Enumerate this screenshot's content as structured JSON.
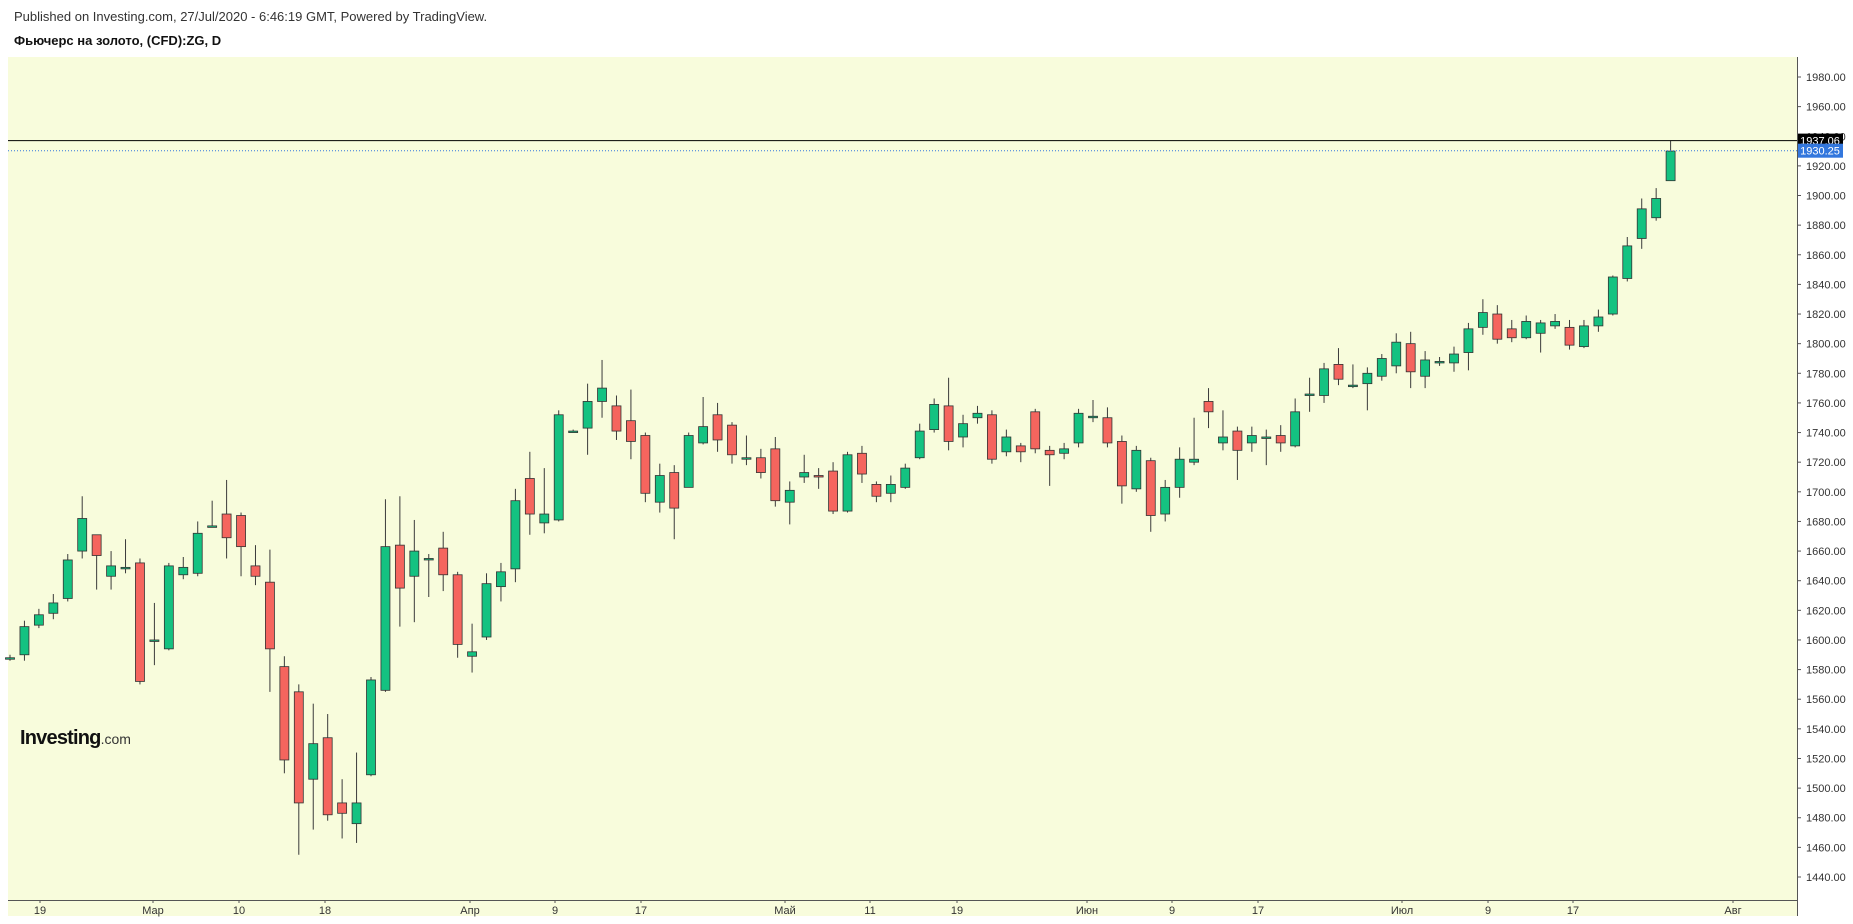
{
  "header": {
    "published": "Published on Investing.com, 27/Jul/2020 - 6:46:19 GMT, Powered by TradingView.",
    "symbol": "Фьючерс на золото, (CFD):ZG, D"
  },
  "logo": {
    "name": "Investing",
    "suffix": ".com"
  },
  "colors": {
    "background": "#f8fcdc",
    "up": "#14c281",
    "down": "#f5655e",
    "wick": "#3a3a3a",
    "axis": "#555555",
    "price_line": "#000000",
    "last_label": "#3377dd"
  },
  "chart_data": {
    "type": "candlestick",
    "title": "Фьючерс на золото, (CFD):ZG, D",
    "interval": "D",
    "ylim": [
      1430,
      1995
    ],
    "y_ticks": [
      1440,
      1460,
      1480,
      1500,
      1520,
      1540,
      1560,
      1580,
      1600,
      1620,
      1640,
      1660,
      1680,
      1700,
      1720,
      1740,
      1760,
      1780,
      1800,
      1820,
      1840,
      1860,
      1880,
      1900,
      1920,
      1940,
      1960,
      1980
    ],
    "x_labels": [
      "19",
      "Мар",
      "10",
      "18",
      "Апр",
      "9",
      "17",
      "Май",
      "11",
      "19",
      "Июн",
      "9",
      "17",
      "Июл",
      "9",
      "17",
      "Авг"
    ],
    "grid": false,
    "price_line": {
      "value": 1937.06,
      "label": "1937.06"
    },
    "last_price": {
      "value": 1930.25,
      "label": "1930.25"
    },
    "candles": [
      [
        1588,
        1588,
        1586,
        1590
      ],
      [
        1590,
        1609,
        1586,
        1613
      ],
      [
        1610,
        1617,
        1608,
        1621
      ],
      [
        1618,
        1625,
        1614,
        1631
      ],
      [
        1628,
        1654,
        1626,
        1658
      ],
      [
        1660,
        1682,
        1655,
        1697
      ],
      [
        1671,
        1657,
        1634,
        1671
      ],
      [
        1643,
        1650,
        1634,
        1660
      ],
      [
        1648,
        1649,
        1645,
        1668
      ],
      [
        1652,
        1572,
        1570,
        1655
      ],
      [
        1600,
        1600,
        1583,
        1625
      ],
      [
        1594,
        1650,
        1593,
        1652
      ],
      [
        1644,
        1649,
        1641,
        1656
      ],
      [
        1645,
        1672,
        1643,
        1680
      ],
      [
        1677,
        1677,
        1676,
        1694
      ],
      [
        1685,
        1669,
        1655,
        1708
      ],
      [
        1684,
        1663,
        1643,
        1686
      ],
      [
        1650,
        1643,
        1637,
        1664
      ],
      [
        1639,
        1594,
        1565,
        1661
      ],
      [
        1582,
        1519,
        1510,
        1589
      ],
      [
        1565,
        1490,
        1455,
        1570
      ],
      [
        1506,
        1530,
        1472,
        1557
      ],
      [
        1534,
        1482,
        1478,
        1550
      ],
      [
        1490,
        1483,
        1466,
        1506
      ],
      [
        1476,
        1490,
        1463,
        1524
      ],
      [
        1509,
        1573,
        1508,
        1575
      ],
      [
        1566,
        1663,
        1565,
        1695
      ],
      [
        1664,
        1635,
        1609,
        1697
      ],
      [
        1643,
        1660,
        1612,
        1681
      ],
      [
        1655,
        1655,
        1629,
        1658
      ],
      [
        1662,
        1644,
        1633,
        1673
      ],
      [
        1644,
        1597,
        1588,
        1646
      ],
      [
        1589,
        1592,
        1578,
        1611
      ],
      [
        1602,
        1638,
        1600,
        1645
      ],
      [
        1636,
        1646,
        1626,
        1652
      ],
      [
        1648,
        1694,
        1639,
        1702
      ],
      [
        1709,
        1685,
        1671,
        1727
      ],
      [
        1679,
        1685,
        1672,
        1716
      ],
      [
        1681,
        1752,
        1680,
        1755
      ],
      [
        1741,
        1741,
        1740,
        1742
      ],
      [
        1743,
        1761,
        1725,
        1773
      ],
      [
        1761,
        1770,
        1750,
        1789
      ],
      [
        1758,
        1741,
        1735,
        1765
      ],
      [
        1748,
        1734,
        1722,
        1769
      ],
      [
        1738,
        1699,
        1693,
        1740
      ],
      [
        1693,
        1711,
        1686,
        1719
      ],
      [
        1713,
        1689,
        1668,
        1718
      ],
      [
        1703,
        1738,
        1703,
        1740
      ],
      [
        1733,
        1744,
        1732,
        1764
      ],
      [
        1752,
        1735,
        1727,
        1760
      ],
      [
        1745,
        1725,
        1719,
        1747
      ],
      [
        1722,
        1723,
        1718,
        1738
      ],
      [
        1723,
        1713,
        1709,
        1729
      ],
      [
        1729,
        1694,
        1690,
        1737
      ],
      [
        1693,
        1701,
        1678,
        1707
      ],
      [
        1710,
        1713,
        1706,
        1725
      ],
      [
        1711,
        1710,
        1702,
        1716
      ],
      [
        1714,
        1687,
        1685,
        1720
      ],
      [
        1687,
        1725,
        1686,
        1727
      ],
      [
        1726,
        1712,
        1706,
        1731
      ],
      [
        1705,
        1697,
        1693,
        1707
      ],
      [
        1699,
        1705,
        1693,
        1711
      ],
      [
        1703,
        1716,
        1702,
        1719
      ],
      [
        1723,
        1741,
        1722,
        1746
      ],
      [
        1742,
        1759,
        1740,
        1763
      ],
      [
        1758,
        1734,
        1728,
        1777
      ],
      [
        1737,
        1746,
        1730,
        1752
      ],
      [
        1750,
        1753,
        1746,
        1758
      ],
      [
        1752,
        1722,
        1719,
        1755
      ],
      [
        1727,
        1737,
        1724,
        1742
      ],
      [
        1731,
        1727,
        1720,
        1733
      ],
      [
        1754,
        1729,
        1726,
        1756
      ],
      [
        1728,
        1725,
        1704,
        1731
      ],
      [
        1726,
        1729,
        1722,
        1733
      ],
      [
        1733,
        1753,
        1730,
        1756
      ],
      [
        1751,
        1751,
        1747,
        1762
      ],
      [
        1750,
        1733,
        1730,
        1757
      ],
      [
        1734,
        1704,
        1692,
        1738
      ],
      [
        1702,
        1728,
        1700,
        1731
      ],
      [
        1721,
        1684,
        1673,
        1723
      ],
      [
        1685,
        1703,
        1680,
        1708
      ],
      [
        1703,
        1722,
        1696,
        1730
      ],
      [
        1720,
        1722,
        1718,
        1750
      ],
      [
        1761,
        1754,
        1743,
        1770
      ],
      [
        1733,
        1737,
        1728,
        1755
      ],
      [
        1741,
        1728,
        1708,
        1744
      ],
      [
        1733,
        1738,
        1727,
        1744
      ],
      [
        1737,
        1737,
        1718,
        1742
      ],
      [
        1738,
        1733,
        1727,
        1745
      ],
      [
        1731,
        1754,
        1730,
        1763
      ],
      [
        1766,
        1766,
        1754,
        1777
      ],
      [
        1765,
        1783,
        1760,
        1787
      ],
      [
        1786,
        1776,
        1772,
        1797
      ],
      [
        1772,
        1772,
        1770,
        1786
      ],
      [
        1773,
        1780,
        1755,
        1784
      ],
      [
        1778,
        1790,
        1775,
        1793
      ],
      [
        1785,
        1801,
        1780,
        1807
      ],
      [
        1800,
        1781,
        1770,
        1808
      ],
      [
        1778,
        1789,
        1770,
        1795
      ],
      [
        1788,
        1788,
        1785,
        1791
      ],
      [
        1787,
        1793,
        1781,
        1798
      ],
      [
        1794,
        1810,
        1782,
        1814
      ],
      [
        1811,
        1821,
        1806,
        1830
      ],
      [
        1820,
        1803,
        1800,
        1826
      ],
      [
        1810,
        1804,
        1801,
        1816
      ],
      [
        1804,
        1815,
        1803,
        1819
      ],
      [
        1807,
        1814,
        1794,
        1816
      ],
      [
        1812,
        1815,
        1810,
        1820
      ],
      [
        1811,
        1799,
        1796,
        1816
      ],
      [
        1798,
        1812,
        1797,
        1816
      ],
      [
        1812,
        1818,
        1808,
        1823
      ],
      [
        1820,
        1845,
        1819,
        1846
      ],
      [
        1844,
        1866,
        1842,
        1872
      ],
      [
        1871,
        1891,
        1864,
        1898
      ],
      [
        1885,
        1898,
        1883,
        1905
      ],
      [
        1910,
        1930,
        1910,
        1937
      ]
    ]
  }
}
